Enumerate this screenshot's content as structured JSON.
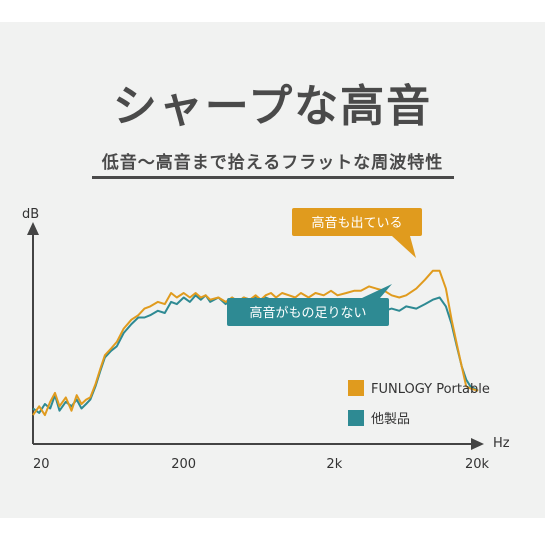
{
  "page": {
    "title": "シャープな高音",
    "subtitle": "低音〜高音まで拾えるフラットな周波特性"
  },
  "chart_data": {
    "type": "line",
    "xlabel": "Hz",
    "ylabel": "dB",
    "xscale": "log",
    "xlim": [
      20,
      20000
    ],
    "ylim": [
      0,
      100
    ],
    "xticks": [
      {
        "value": 20,
        "label": "20"
      },
      {
        "value": 200,
        "label": "200"
      },
      {
        "value": 2000,
        "label": "2k"
      },
      {
        "value": 20000,
        "label": "20k"
      }
    ],
    "legend_position": "bottom-right",
    "series": [
      {
        "name": "FUNLOGY Portable",
        "color": "#e09b1e",
        "points": [
          [
            20,
            13
          ],
          [
            22,
            17
          ],
          [
            24,
            13
          ],
          [
            26,
            19
          ],
          [
            28,
            23
          ],
          [
            30,
            17
          ],
          [
            33,
            21
          ],
          [
            36,
            15
          ],
          [
            39,
            22
          ],
          [
            42,
            18
          ],
          [
            45,
            20
          ],
          [
            48,
            21
          ],
          [
            52,
            27
          ],
          [
            56,
            34
          ],
          [
            60,
            40
          ],
          [
            66,
            43
          ],
          [
            72,
            46
          ],
          [
            80,
            52
          ],
          [
            90,
            56
          ],
          [
            100,
            58
          ],
          [
            110,
            61
          ],
          [
            120,
            62
          ],
          [
            135,
            64
          ],
          [
            150,
            63
          ],
          [
            165,
            68
          ],
          [
            180,
            66
          ],
          [
            200,
            68
          ],
          [
            220,
            66
          ],
          [
            240,
            68
          ],
          [
            260,
            66
          ],
          [
            280,
            67
          ],
          [
            300,
            65
          ],
          [
            340,
            66
          ],
          [
            380,
            64
          ],
          [
            420,
            66
          ],
          [
            460,
            64
          ],
          [
            500,
            66
          ],
          [
            550,
            65
          ],
          [
            600,
            67
          ],
          [
            650,
            65
          ],
          [
            700,
            67
          ],
          [
            760,
            68
          ],
          [
            820,
            66
          ],
          [
            900,
            68
          ],
          [
            1000,
            67
          ],
          [
            1100,
            66
          ],
          [
            1200,
            68
          ],
          [
            1350,
            66
          ],
          [
            1500,
            68
          ],
          [
            1700,
            67
          ],
          [
            1900,
            69
          ],
          [
            2100,
            67
          ],
          [
            2400,
            68
          ],
          [
            2700,
            69
          ],
          [
            3000,
            69
          ],
          [
            3400,
            71
          ],
          [
            3800,
            70
          ],
          [
            4300,
            69
          ],
          [
            4800,
            67
          ],
          [
            5400,
            66
          ],
          [
            6000,
            67
          ],
          [
            7000,
            70
          ],
          [
            8000,
            74
          ],
          [
            9000,
            78
          ],
          [
            10000,
            78
          ],
          [
            11000,
            70
          ],
          [
            12000,
            56
          ],
          [
            13000,
            45
          ],
          [
            14000,
            35
          ],
          [
            15000,
            26
          ],
          [
            16000,
            25
          ],
          [
            18000,
            24
          ]
        ]
      },
      {
        "name": "他製品",
        "color": "#2e8a93",
        "points": [
          [
            20,
            16
          ],
          [
            22,
            14
          ],
          [
            24,
            18
          ],
          [
            26,
            16
          ],
          [
            28,
            22
          ],
          [
            30,
            15
          ],
          [
            33,
            19
          ],
          [
            36,
            17
          ],
          [
            39,
            20
          ],
          [
            42,
            16
          ],
          [
            45,
            18
          ],
          [
            48,
            20
          ],
          [
            52,
            26
          ],
          [
            56,
            33
          ],
          [
            60,
            39
          ],
          [
            66,
            42
          ],
          [
            72,
            44
          ],
          [
            80,
            50
          ],
          [
            90,
            54
          ],
          [
            100,
            57
          ],
          [
            110,
            57
          ],
          [
            120,
            58
          ],
          [
            135,
            60
          ],
          [
            150,
            59
          ],
          [
            165,
            64
          ],
          [
            180,
            63
          ],
          [
            200,
            66
          ],
          [
            220,
            64
          ],
          [
            240,
            67
          ],
          [
            260,
            65
          ],
          [
            280,
            67
          ],
          [
            300,
            64
          ],
          [
            340,
            66
          ],
          [
            380,
            63
          ],
          [
            420,
            66
          ],
          [
            460,
            64
          ],
          [
            500,
            66
          ],
          [
            550,
            65
          ],
          [
            600,
            66
          ],
          [
            650,
            64
          ],
          [
            700,
            66
          ],
          [
            760,
            65
          ],
          [
            820,
            63
          ],
          [
            900,
            65
          ],
          [
            1000,
            64
          ],
          [
            1100,
            63
          ],
          [
            1200,
            64
          ],
          [
            1350,
            62
          ],
          [
            1500,
            63
          ],
          [
            1700,
            61
          ],
          [
            1900,
            62
          ],
          [
            2100,
            60
          ],
          [
            2400,
            61
          ],
          [
            2700,
            59
          ],
          [
            3000,
            60
          ],
          [
            3400,
            59
          ],
          [
            3800,
            61
          ],
          [
            4300,
            60
          ],
          [
            4800,
            61
          ],
          [
            5400,
            60
          ],
          [
            6000,
            62
          ],
          [
            7000,
            61
          ],
          [
            8000,
            63
          ],
          [
            9000,
            65
          ],
          [
            10000,
            66
          ],
          [
            11000,
            62
          ],
          [
            12000,
            54
          ],
          [
            13000,
            44
          ],
          [
            14000,
            35
          ],
          [
            15000,
            29
          ],
          [
            16000,
            26
          ],
          [
            18000,
            24
          ]
        ]
      }
    ],
    "annotations": [
      {
        "text": "高音も出ている",
        "series": "FUNLOGY Portable",
        "color": "#e09b1e"
      },
      {
        "text": "高音がもの足りない",
        "series": "他製品",
        "color": "#2e8a93"
      }
    ]
  }
}
